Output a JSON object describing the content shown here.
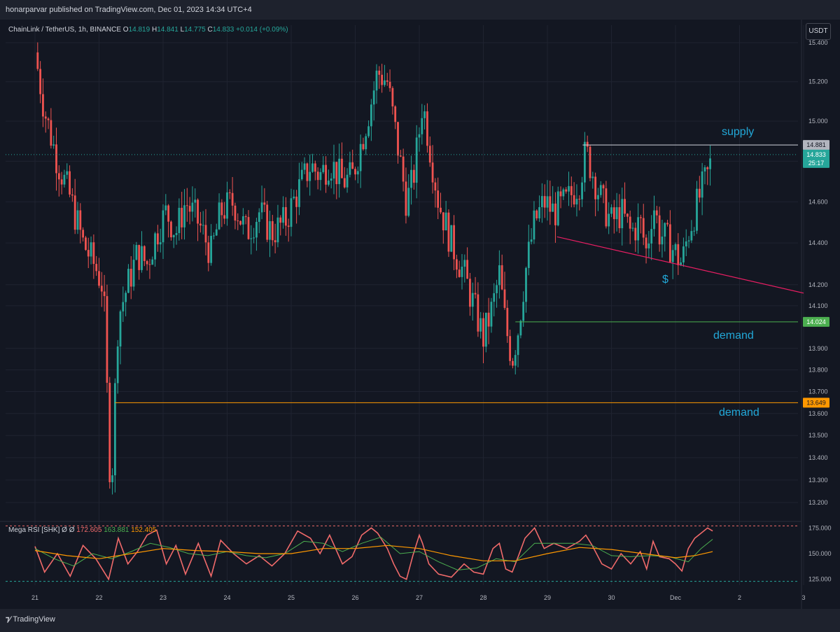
{
  "header": {
    "published": "honarparvar published on TradingView.com, Dec 01, 2023 14:34 UTC+4"
  },
  "footer": {
    "logo": "TradingView",
    "logo_icon": "tradingview-logo-icon"
  },
  "legend": {
    "symbol": "ChainLink / TetherUS, 1h, BINANCE",
    "open_label": "O",
    "open": "14.819",
    "high_label": "H",
    "high": "14.841",
    "low_label": "L",
    "low": "14.775",
    "close_label": "C",
    "close": "14.833",
    "change": "+0.014 (+0.09%)"
  },
  "currency": "USDT",
  "annotations": {
    "supply": "supply",
    "demand1": "demand",
    "demand2": "demand",
    "dollar": "$"
  },
  "colors": {
    "up": "#26a69a",
    "down": "#ef5350",
    "supply_line": "#d1d4dc",
    "demand1_line": "#4caf50",
    "demand2_line": "#ff9800",
    "trendline": "#e91e63",
    "annotation": "#22a8d8",
    "rsi": "#f06a6a",
    "rsi_fast": "#4caf50",
    "rsi_slow": "#ff9800"
  },
  "chart_data": [
    {
      "type": "candlestick",
      "title": "ChainLink / TetherUS, 1h, BINANCE",
      "x_ticks": [
        "21",
        "22",
        "23",
        "24",
        "25",
        "26",
        "27",
        "28",
        "29",
        "30",
        "Dec",
        "2",
        "3"
      ],
      "y_ticks": [
        "13.200",
        "13.300",
        "13.400",
        "13.500",
        "13.600",
        "13.700",
        "13.800",
        "13.900",
        "14.100",
        "14.200",
        "14.400",
        "14.600",
        "14.800",
        "15.000",
        "15.200",
        "15.400"
      ],
      "y_axis_scale": "log",
      "price_labels": [
        {
          "name": "supply",
          "value": "14.881"
        },
        {
          "name": "last",
          "value": "14.833",
          "countdown": "25:17"
        },
        {
          "name": "demand-1",
          "value": "14.024"
        },
        {
          "name": "demand-2",
          "value": "13.649"
        }
      ],
      "horizontal_levels": [
        {
          "name": "supply",
          "price": 14.881,
          "from_day": 29.55
        },
        {
          "name": "demand",
          "price": 14.024,
          "from_day": 28.5
        },
        {
          "name": "demand",
          "price": 13.649,
          "from_day": 22.25
        }
      ],
      "trendline": {
        "from": [
          29.15,
          14.43
        ],
        "to": [
          33.0,
          14.16
        ]
      },
      "path_points": [
        [
          21.0,
          15.35
        ],
        [
          21.15,
          15.05
        ],
        [
          21.35,
          14.8
        ],
        [
          21.55,
          14.62
        ],
        [
          21.75,
          14.4
        ],
        [
          21.95,
          14.28
        ],
        [
          22.05,
          14.2
        ],
        [
          22.1,
          14.0
        ],
        [
          22.15,
          13.4
        ],
        [
          22.2,
          13.3
        ],
        [
          22.25,
          13.7
        ],
        [
          22.3,
          14.05
        ],
        [
          22.45,
          14.2
        ],
        [
          22.6,
          14.35
        ],
        [
          22.75,
          14.3
        ],
        [
          22.9,
          14.45
        ],
        [
          23.05,
          14.55
        ],
        [
          23.2,
          14.45
        ],
        [
          23.35,
          14.6
        ],
        [
          23.55,
          14.5
        ],
        [
          23.75,
          14.35
        ],
        [
          23.9,
          14.55
        ],
        [
          24.1,
          14.6
        ],
        [
          24.3,
          14.45
        ],
        [
          24.5,
          14.55
        ],
        [
          24.7,
          14.45
        ],
        [
          24.9,
          14.5
        ],
        [
          25.1,
          14.65
        ],
        [
          25.3,
          14.78
        ],
        [
          25.45,
          14.73
        ],
        [
          25.6,
          14.8
        ],
        [
          25.8,
          14.7
        ],
        [
          25.95,
          14.72
        ],
        [
          26.1,
          14.9
        ],
        [
          26.25,
          15.1
        ],
        [
          26.35,
          15.25
        ],
        [
          26.5,
          15.2
        ],
        [
          26.6,
          15.0
        ],
        [
          26.7,
          14.8
        ],
        [
          26.8,
          14.6
        ],
        [
          26.9,
          14.7
        ],
        [
          27.0,
          14.95
        ],
        [
          27.05,
          15.1
        ],
        [
          27.15,
          14.9
        ],
        [
          27.3,
          14.6
        ],
        [
          27.5,
          14.4
        ],
        [
          27.7,
          14.25
        ],
        [
          27.85,
          14.1
        ],
        [
          28.0,
          13.95
        ],
        [
          28.15,
          14.1
        ],
        [
          28.25,
          14.25
        ],
        [
          28.35,
          14.0
        ],
        [
          28.45,
          13.85
        ],
        [
          28.55,
          14.0
        ],
        [
          28.65,
          14.25
        ],
        [
          28.8,
          14.5
        ],
        [
          28.95,
          14.6
        ],
        [
          29.1,
          14.55
        ],
        [
          29.3,
          14.6
        ],
        [
          29.5,
          14.7
        ],
        [
          29.6,
          14.85
        ],
        [
          29.7,
          14.75
        ],
        [
          29.85,
          14.6
        ],
        [
          30.0,
          14.5
        ],
        [
          30.15,
          14.55
        ],
        [
          30.3,
          14.45
        ],
        [
          30.45,
          14.5
        ],
        [
          30.55,
          14.35
        ],
        [
          30.65,
          14.6
        ],
        [
          30.75,
          14.45
        ],
        [
          30.9,
          14.4
        ],
        [
          31.0,
          14.35
        ],
        [
          31.1,
          14.3
        ],
        [
          31.2,
          14.45
        ],
        [
          31.3,
          14.55
        ],
        [
          31.4,
          14.65
        ],
        [
          31.5,
          14.73
        ],
        [
          31.58,
          14.83
        ]
      ]
    },
    {
      "type": "line",
      "title": "Mega RSI [SHK]",
      "legend": [
        "Mega RSI [SHK]",
        "Ø",
        "Ø",
        "172.605",
        "163.881",
        "152.405"
      ],
      "y_ticks": [
        "125.000",
        "150.000",
        "175.000"
      ],
      "ylim": [
        120,
        180
      ],
      "series": [
        {
          "name": "172.605",
          "points": [
            [
              21.0,
              157
            ],
            [
              21.15,
              132
            ],
            [
              21.35,
              150
            ],
            [
              21.55,
              128
            ],
            [
              21.75,
              158
            ],
            [
              21.95,
              145
            ],
            [
              22.15,
              125
            ],
            [
              22.3,
              165
            ],
            [
              22.45,
              140
            ],
            [
              22.6,
              152
            ],
            [
              22.75,
              168
            ],
            [
              22.9,
              173
            ],
            [
              23.05,
              140
            ],
            [
              23.2,
              158
            ],
            [
              23.35,
              130
            ],
            [
              23.55,
              160
            ],
            [
              23.75,
              128
            ],
            [
              23.9,
              163
            ],
            [
              24.1,
              150
            ],
            [
              24.3,
              140
            ],
            [
              24.5,
              148
            ],
            [
              24.7,
              138
            ],
            [
              24.9,
              150
            ],
            [
              25.1,
              172
            ],
            [
              25.3,
              165
            ],
            [
              25.45,
              150
            ],
            [
              25.6,
              168
            ],
            [
              25.8,
              140
            ],
            [
              25.95,
              147
            ],
            [
              26.1,
              168
            ],
            [
              26.25,
              175
            ],
            [
              26.35,
              170
            ],
            [
              26.5,
              155
            ],
            [
              26.6,
              140
            ],
            [
              26.7,
              128
            ],
            [
              26.8,
              125
            ],
            [
              26.9,
              148
            ],
            [
              27.0,
              168
            ],
            [
              27.05,
              160
            ],
            [
              27.15,
              140
            ],
            [
              27.3,
              130
            ],
            [
              27.5,
              127
            ],
            [
              27.7,
              140
            ],
            [
              27.85,
              132
            ],
            [
              28.0,
              130
            ],
            [
              28.15,
              155
            ],
            [
              28.25,
              160
            ],
            [
              28.35,
              135
            ],
            [
              28.45,
              132
            ],
            [
              28.55,
              148
            ],
            [
              28.65,
              165
            ],
            [
              28.8,
              175
            ],
            [
              28.95,
              155
            ],
            [
              29.1,
              160
            ],
            [
              29.3,
              155
            ],
            [
              29.5,
              162
            ],
            [
              29.6,
              168
            ],
            [
              29.7,
              158
            ],
            [
              29.85,
              140
            ],
            [
              30.0,
              135
            ],
            [
              30.15,
              150
            ],
            [
              30.3,
              140
            ],
            [
              30.45,
              152
            ],
            [
              30.55,
              135
            ],
            [
              30.65,
              162
            ],
            [
              30.75,
              147
            ],
            [
              30.9,
              145
            ],
            [
              31.0,
              140
            ],
            [
              31.1,
              133
            ],
            [
              31.2,
              155
            ],
            [
              31.3,
              165
            ],
            [
              31.4,
              170
            ],
            [
              31.5,
              175
            ],
            [
              31.58,
              172
            ]
          ]
        },
        {
          "name": "163.881",
          "points": [
            [
              21.0,
              155
            ],
            [
              21.3,
              145
            ],
            [
              21.6,
              138
            ],
            [
              21.9,
              150
            ],
            [
              22.2,
              145
            ],
            [
              22.5,
              152
            ],
            [
              22.8,
              160
            ],
            [
              23.1,
              156
            ],
            [
              23.4,
              150
            ],
            [
              23.7,
              148
            ],
            [
              24.0,
              152
            ],
            [
              24.3,
              148
            ],
            [
              24.6,
              146
            ],
            [
              24.9,
              150
            ],
            [
              25.2,
              162
            ],
            [
              25.5,
              160
            ],
            [
              25.8,
              152
            ],
            [
              26.1,
              160
            ],
            [
              26.4,
              166
            ],
            [
              26.7,
              150
            ],
            [
              27.0,
              152
            ],
            [
              27.3,
              142
            ],
            [
              27.6,
              134
            ],
            [
              27.9,
              136
            ],
            [
              28.2,
              145
            ],
            [
              28.5,
              142
            ],
            [
              28.8,
              160
            ],
            [
              29.1,
              160
            ],
            [
              29.4,
              160
            ],
            [
              29.7,
              158
            ],
            [
              30.0,
              148
            ],
            [
              30.3,
              147
            ],
            [
              30.6,
              148
            ],
            [
              30.9,
              147
            ],
            [
              31.2,
              142
            ],
            [
              31.4,
              155
            ],
            [
              31.58,
              164
            ]
          ]
        },
        {
          "name": "152.405",
          "points": [
            [
              21.0,
              153
            ],
            [
              21.5,
              148
            ],
            [
              22.0,
              145
            ],
            [
              22.5,
              150
            ],
            [
              23.0,
              155
            ],
            [
              23.5,
              153
            ],
            [
              24.0,
              152
            ],
            [
              24.5,
              150
            ],
            [
              25.0,
              150
            ],
            [
              25.5,
              155
            ],
            [
              26.0,
              155
            ],
            [
              26.5,
              158
            ],
            [
              27.0,
              155
            ],
            [
              27.5,
              148
            ],
            [
              28.0,
              143
            ],
            [
              28.5,
              143
            ],
            [
              29.0,
              150
            ],
            [
              29.5,
              156
            ],
            [
              30.0,
              154
            ],
            [
              30.5,
              150
            ],
            [
              31.0,
              146
            ],
            [
              31.3,
              148
            ],
            [
              31.58,
              152
            ]
          ]
        }
      ]
    }
  ]
}
